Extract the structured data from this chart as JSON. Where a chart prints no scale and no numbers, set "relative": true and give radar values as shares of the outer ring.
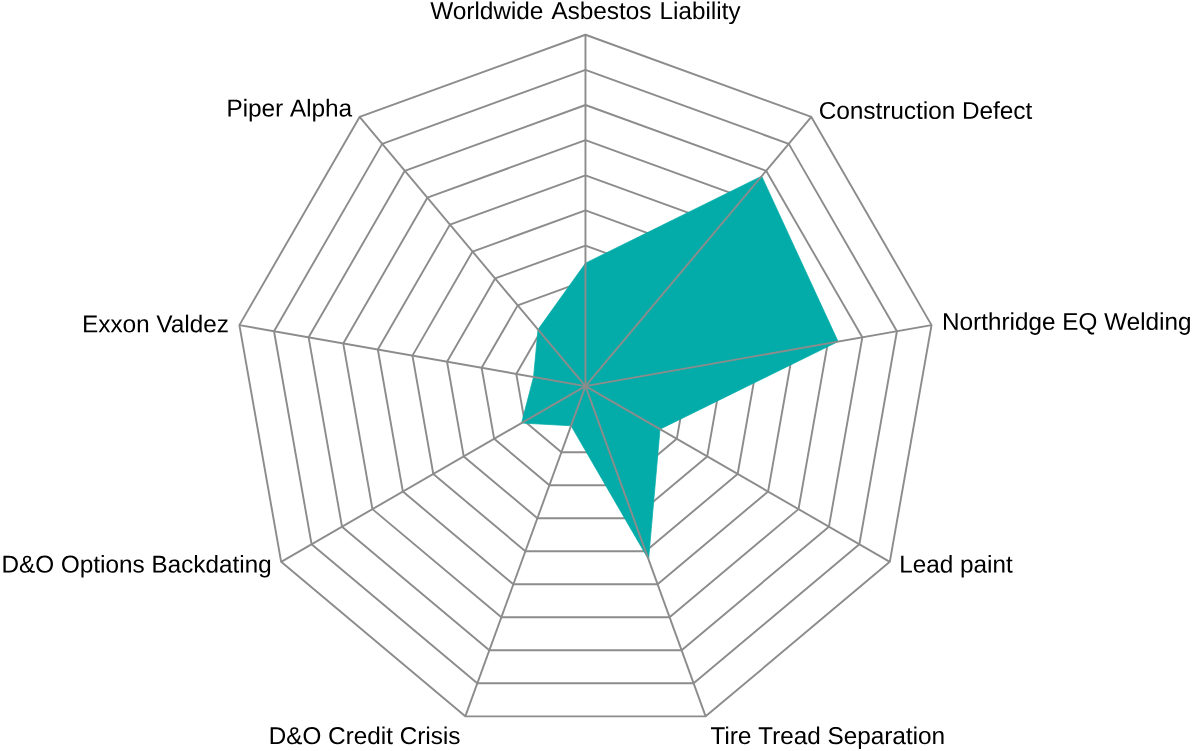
{
  "chart_data": {
    "type": "radar",
    "relative": true,
    "grid": true,
    "categories": [
      "Worldwide Asbestos Liability",
      "Construction Defect",
      "Northridge EQ Welding",
      "Lead paint",
      "Tire Tread Separation",
      "D&O Credit Crisis",
      "D&O Options Backdating",
      "Exxon Valdez",
      "Piper Alpha"
    ],
    "series": [
      {
        "color": "#03aca8",
        "values": [
          0.35,
          0.78,
          0.73,
          0.245,
          0.525,
          0.12,
          0.21,
          0.15,
          0.21
        ]
      }
    ]
  }
}
